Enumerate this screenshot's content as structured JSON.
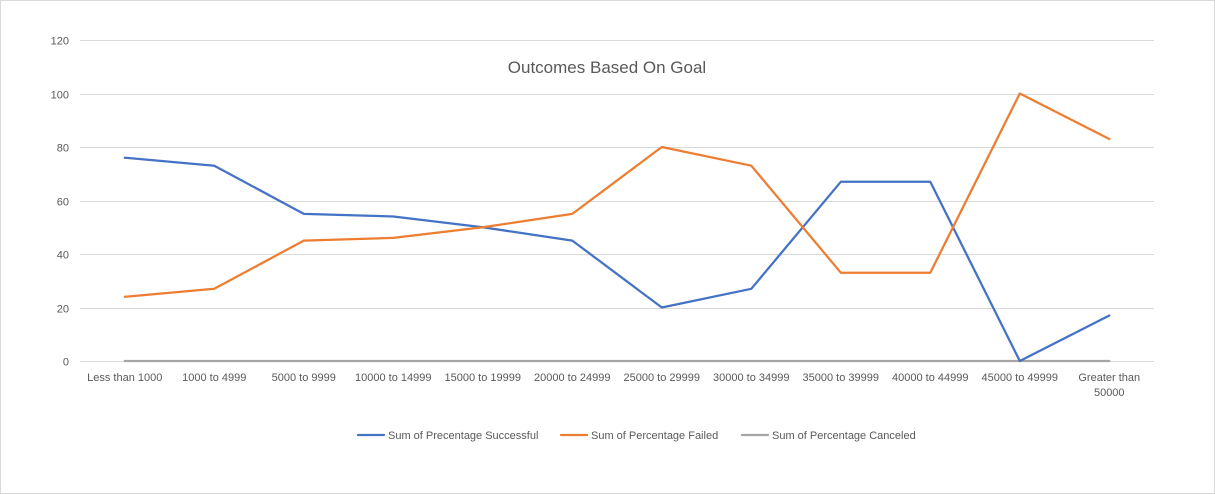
{
  "chart_data": {
    "type": "line",
    "title": "Outcomes Based On Goal",
    "xlabel": "",
    "ylabel": "",
    "ylim": [
      0,
      120
    ],
    "yticks": [
      0,
      20,
      40,
      60,
      80,
      100,
      120
    ],
    "grid": true,
    "legend_position": "bottom",
    "categories": [
      "Less than 1000",
      "1000 to 4999",
      "5000 to 9999",
      "10000 to 14999",
      "15000 to 19999",
      "20000 to 24999",
      "25000 to 29999",
      "30000 to 34999",
      "35000 to 39999",
      "40000 to 44999",
      "45000 to 49999",
      "Greater than 50000"
    ],
    "series": [
      {
        "name": "Sum of Precentage Successful",
        "color": "#4472c4",
        "values": [
          76,
          73,
          55,
          54,
          50,
          45,
          20,
          27,
          67,
          67,
          0,
          17
        ]
      },
      {
        "name": "Sum of Percentage Failed",
        "color": "#ed7d31",
        "values": [
          24,
          27,
          45,
          46,
          50,
          55,
          80,
          73,
          33,
          33,
          100,
          83
        ]
      },
      {
        "name": "Sum of Percentage Canceled",
        "color": "#a5a5a5",
        "values": [
          0,
          0,
          0,
          0,
          0,
          0,
          0,
          0,
          0,
          0,
          0,
          0
        ]
      }
    ]
  }
}
